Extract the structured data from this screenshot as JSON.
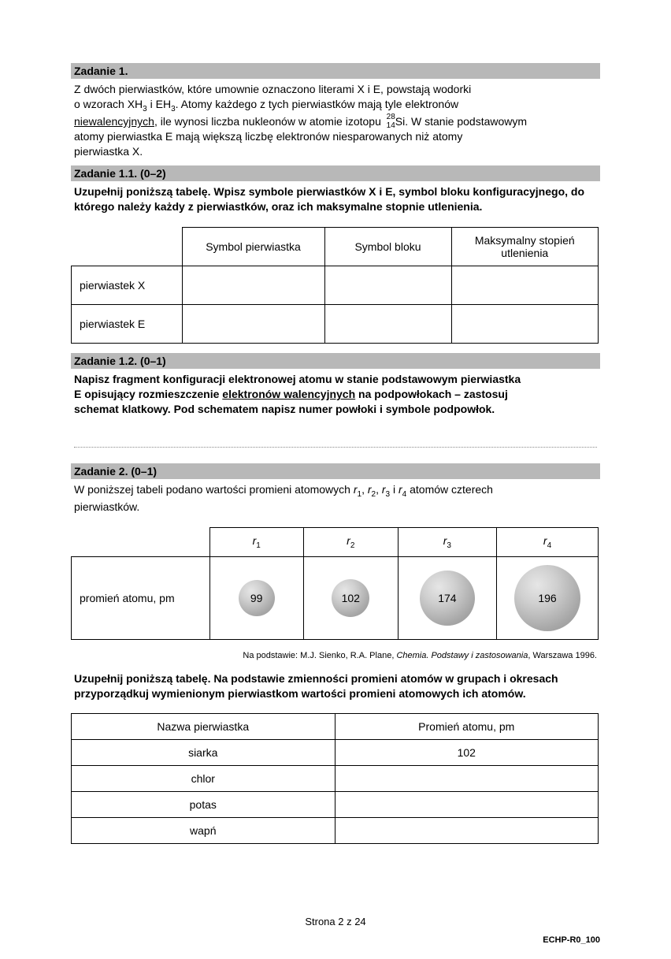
{
  "task1": {
    "header": "Zadanie 1.",
    "paragraph": {
      "p1": "Z dwóch pierwiastków, które umownie oznaczono literami X i E, powstają wodorki",
      "p2a": "o wzorach XH",
      "p2b": " i EH",
      "p2c": ". Atomy każdego z tych pierwiastków mają tyle elektronów",
      "underlined": "niewalencyjnych",
      "p3a": ", ile wynosi liczba nukleonów w atomie izotopu ",
      "iso_top": "28",
      "iso_bot": "14",
      "iso_sym": "Si.",
      "p3b": " W stanie podstawowym",
      "p4": "atomy pierwiastka E mają większą liczbę elektronów niesparowanych niż atomy",
      "p5": "pierwiastka X."
    }
  },
  "task1_1": {
    "header": "Zadanie 1.1. (0–2)",
    "instruction": "Uzupełnij poniższą tabelę. Wpisz symbole pierwiastków X i E, symbol bloku konfiguracyjnego, do którego należy każdy z pierwiastków, oraz ich maksymalne stopnie utlenienia.",
    "table": {
      "cols": [
        "Symbol pierwiastka",
        "Symbol bloku",
        "Maksymalny stopień utlenienia"
      ],
      "rows": [
        "pierwiastek X",
        "pierwiastek E"
      ]
    }
  },
  "task1_2": {
    "header": "Zadanie 1.2. (0–1)",
    "instr_a": "Napisz fragment konfiguracji elektronowej atomu w stanie podstawowym pierwiastka",
    "instr_b": "E opisujący rozmieszczenie ",
    "instr_underlined": "elektronów walencyjnych",
    "instr_c": " na podpowłokach – zastosuj",
    "instr_d": "schemat klatkowy. Pod schematem napisz numer powłoki i symbole podpowłok."
  },
  "task2": {
    "header": "Zadanie 2. (0–1)",
    "intro_a": "W poniższej tabeli podano wartości promieni atomowych ",
    "intro_b": " atomów czterech",
    "intro_c": "pierwiastków.",
    "r_labels": [
      "r",
      "r",
      "r",
      "r"
    ],
    "r_subs": [
      "1",
      "2",
      "3",
      "4"
    ],
    "row_label": "promień atomu, pm",
    "atoms": [
      {
        "value": "99",
        "size": 46
      },
      {
        "value": "102",
        "size": 48
      },
      {
        "value": "174",
        "size": 70
      },
      {
        "value": "196",
        "size": 84
      }
    ],
    "source_a": "Na podstawie: M.J. Sienko, R.A. Plane, ",
    "source_i": "Chemia. Podstawy i zastosowania",
    "source_b": ", Warszawa 1996.",
    "instruction": "Uzupełnij poniższą tabelę. Na podstawie zmienności promieni atomów w grupach i okresach przyporządkuj wymienionym pierwiastkom wartości promieni atomowych ich atomów.",
    "table3": {
      "cols": [
        "Nazwa pierwiastka",
        "Promień atomu, pm"
      ],
      "rows": [
        {
          "name": "siarka",
          "val": "102"
        },
        {
          "name": "chlor",
          "val": ""
        },
        {
          "name": "potas",
          "val": ""
        },
        {
          "name": "wapń",
          "val": ""
        }
      ]
    }
  },
  "footer": {
    "page": "Strona 2 z 24",
    "code": "ECHP-R0_100"
  }
}
